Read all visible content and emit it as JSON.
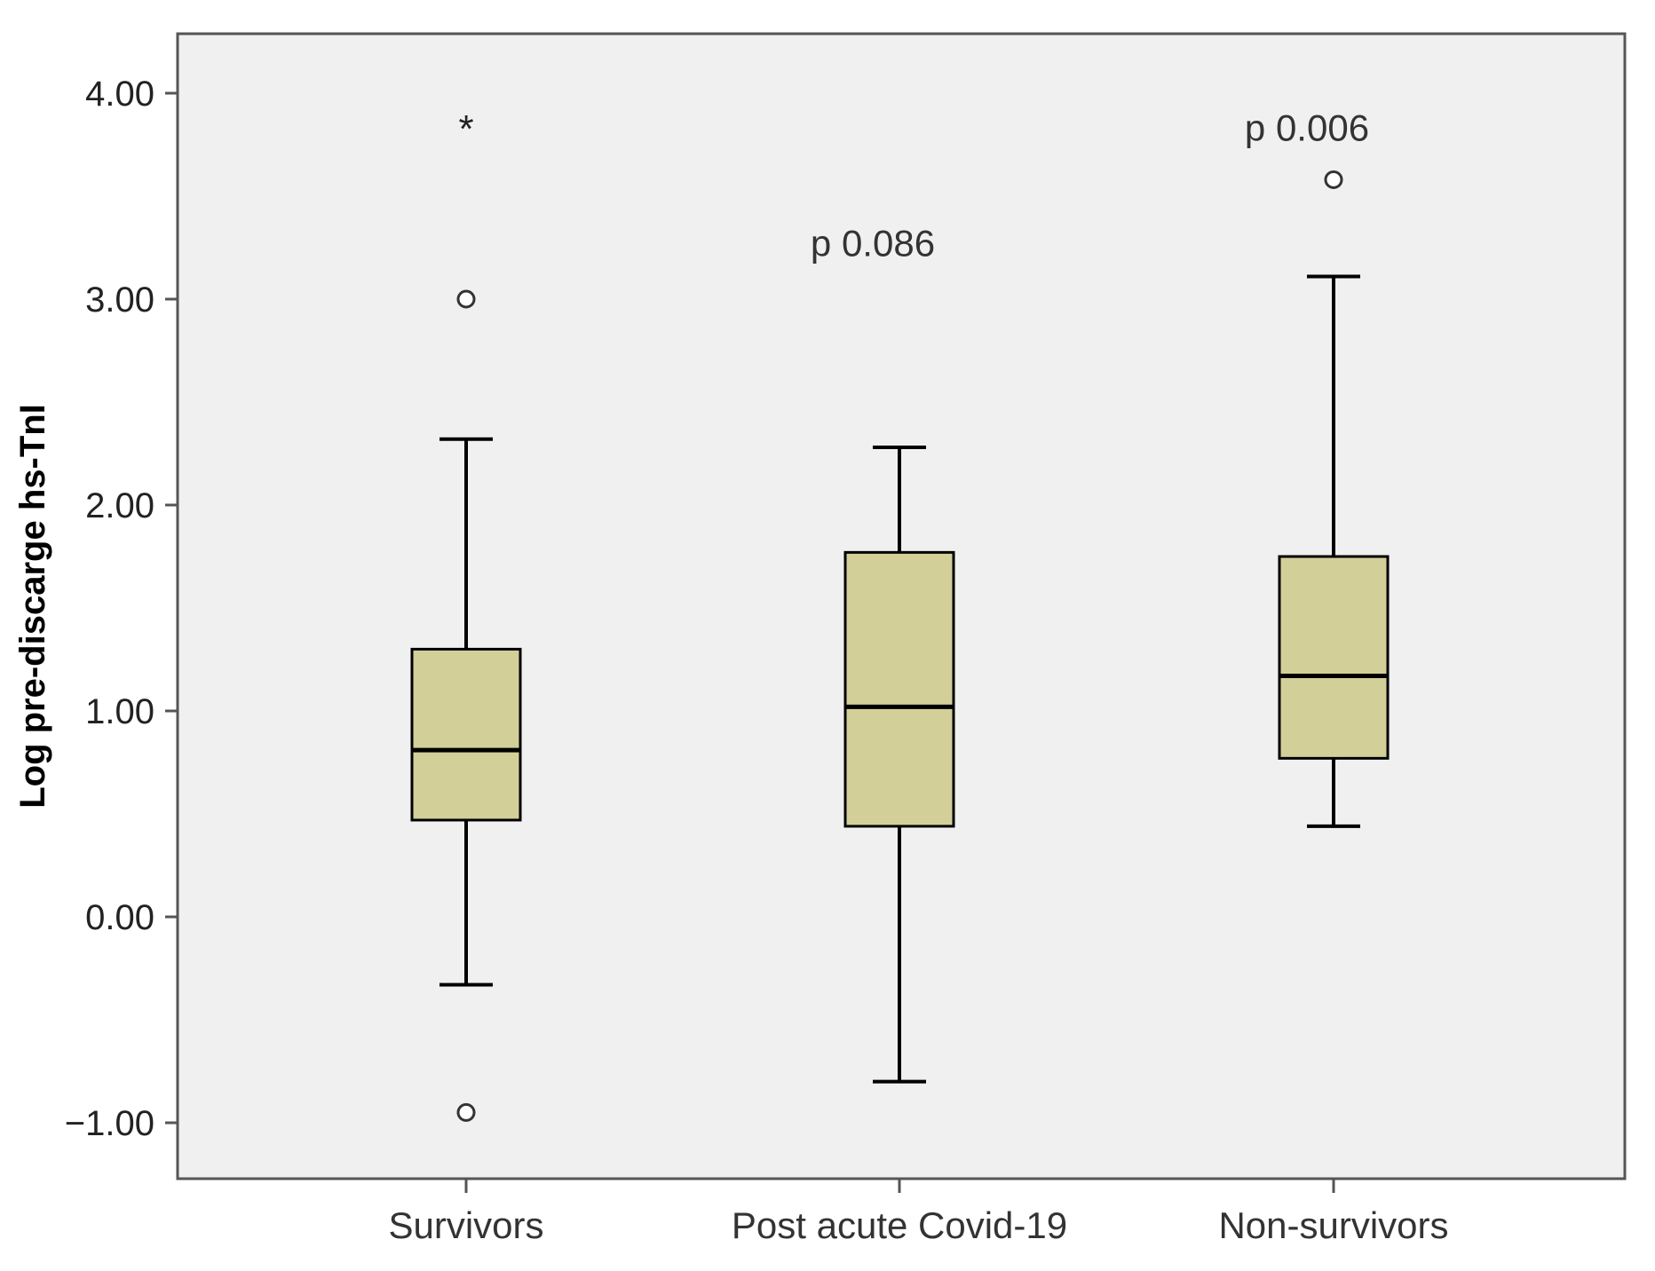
{
  "chart_data": {
    "type": "box",
    "ylabel": "Log pre-discarge hs-TnI",
    "xlabel": "",
    "ylim": [
      -1.25,
      4.4
    ],
    "yticks": [
      4.0,
      3.0,
      2.0,
      1.0,
      0.0,
      -1.0
    ],
    "ytick_labels": [
      "4.00",
      "3.00",
      "2.00",
      "1.00",
      "0.00",
      "−1.00"
    ],
    "categories": [
      "Survivors",
      "Post acute Covid-19",
      "Non-survivors"
    ],
    "boxes": [
      {
        "category": "Survivors",
        "whisker_low": -0.33,
        "q1": 0.47,
        "median": 0.81,
        "q3": 1.3,
        "whisker_high": 2.32,
        "outliers": [
          {
            "y": 3.0,
            "symbol": "circle"
          },
          {
            "y": -0.95,
            "symbol": "circle"
          },
          {
            "y": 3.85,
            "symbol": "star"
          }
        ]
      },
      {
        "category": "Post acute Covid-19",
        "whisker_low": -0.8,
        "q1": 0.44,
        "median": 1.02,
        "q3": 1.77,
        "whisker_high": 2.28,
        "outliers": []
      },
      {
        "category": "Non-survivors",
        "whisker_low": 0.44,
        "q1": 0.77,
        "median": 1.17,
        "q3": 1.75,
        "whisker_high": 3.11,
        "outliers": [
          {
            "y": 3.58,
            "symbol": "circle"
          }
        ]
      }
    ],
    "annotations": [
      {
        "text": "p 0.086",
        "category": "Post acute Covid-19",
        "y": 3.27
      },
      {
        "text": "p 0.006",
        "category": "Non-survivors",
        "y": 3.83
      }
    ],
    "colors": {
      "box_fill": "#d3cf98",
      "plot_bg": "#f0f0f0",
      "line": "#000000",
      "frame": "#555555"
    },
    "grid": false,
    "legend": "none"
  }
}
